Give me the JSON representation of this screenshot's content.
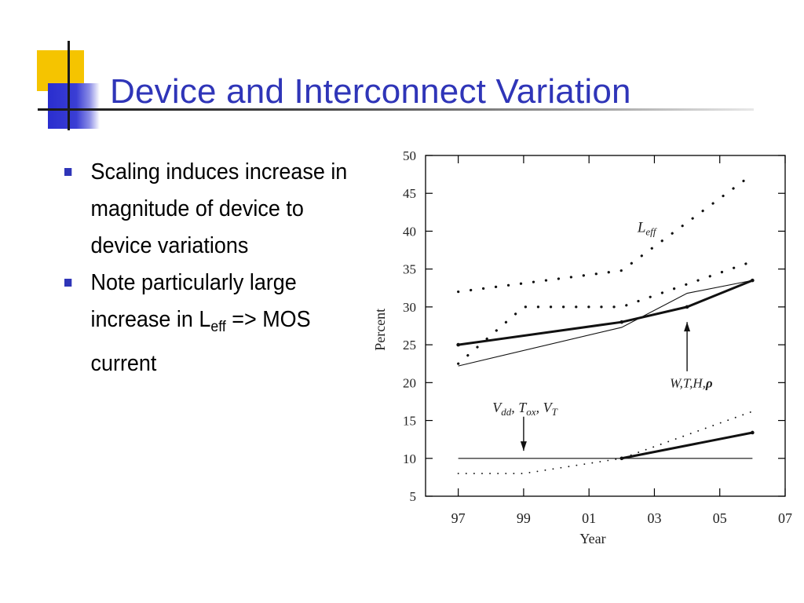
{
  "slide": {
    "title": "Device and Interconnect Variation",
    "bullets": [
      {
        "text": "Scaling induces increase in magnitude of device to device variations"
      },
      {
        "pre": "Note particularly large increase in L",
        "sub": "eff",
        "post": " => MOS current"
      }
    ]
  },
  "colors": {
    "title": "#2f35b8",
    "deco_yellow": "#f5c400",
    "deco_blue": "#2a2ecf",
    "bullet": "#2f35b8"
  },
  "chart_data": {
    "type": "line",
    "xlabel": "Year",
    "ylabel": "Percent",
    "x_ticks": [
      "97",
      "99",
      "01",
      "03",
      "05",
      "07"
    ],
    "ylim": [
      5,
      50
    ],
    "y_ticks": [
      5,
      10,
      15,
      20,
      25,
      30,
      35,
      40,
      45,
      50
    ],
    "grid": false,
    "series": [
      {
        "name": "Leff",
        "style": "dotted-coarse",
        "points": [
          [
            1997,
            32
          ],
          [
            2002,
            34.8
          ],
          [
            2006,
            47.5
          ]
        ]
      },
      {
        "style": "dotted-coarse",
        "points": [
          [
            1997,
            22.5
          ],
          [
            1999,
            30
          ],
          [
            2002,
            30
          ],
          [
            2006,
            36
          ]
        ]
      },
      {
        "style": "thick",
        "points": [
          [
            1997,
            25
          ],
          [
            2002,
            28
          ],
          [
            2004,
            30
          ],
          [
            2006,
            33.5
          ]
        ]
      },
      {
        "style": "thin",
        "points": [
          [
            1997,
            22.2
          ],
          [
            2002,
            27.3
          ],
          [
            2004,
            31.8
          ],
          [
            2006,
            33.5
          ]
        ]
      },
      {
        "style": "thin",
        "points": [
          [
            1997,
            10
          ],
          [
            2006,
            10
          ]
        ]
      },
      {
        "style": "thick",
        "points": [
          [
            2002,
            10
          ],
          [
            2006,
            13.4
          ]
        ]
      },
      {
        "style": "dotted-fine",
        "points": [
          [
            1997,
            8
          ],
          [
            1999,
            8
          ],
          [
            2002,
            10
          ],
          [
            2006,
            16.2
          ]
        ]
      }
    ],
    "annotations": [
      {
        "text": "W,T,H,",
        "rho": "ρ",
        "arrow_from": [
          2004,
          21.5
        ],
        "arrow_to": [
          2004,
          28
        ]
      },
      {
        "text": "V_dd, T_ox, V_T",
        "arrow_from": [
          1999,
          15.5
        ],
        "arrow_to": [
          1999,
          11
        ]
      },
      {
        "text": "L_eff"
      }
    ]
  }
}
